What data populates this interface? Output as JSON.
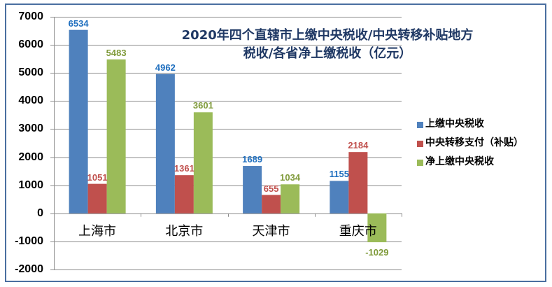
{
  "chart_data": {
    "type": "bar",
    "title": "2020年四个直辖市上缴中央税收/中央转移补贴地方税收/各省净上缴税收（亿元）",
    "title_lines": [
      "2020年四个直辖市上缴中央税收/中央转移补贴地方",
      "税收/各省净上缴税收（亿元）"
    ],
    "categories": [
      "上海市",
      "北京市",
      "天津市",
      "重庆市"
    ],
    "series": [
      {
        "name": "上缴中央税收",
        "color": "#4f81bd",
        "label_color": "#1f6fbf",
        "values": [
          6534,
          4962,
          1689,
          1155
        ]
      },
      {
        "name": "中央转移支付（补贴）",
        "color": "#c0504d",
        "label_color": "#c0504d",
        "values": [
          1051,
          1361,
          655,
          2184
        ]
      },
      {
        "name": "净上缴中央税收",
        "color": "#9bbb59",
        "label_color": "#7f9a3a",
        "values": [
          5483,
          3601,
          1034,
          -1029
        ]
      }
    ],
    "xlabel": "",
    "ylabel": "",
    "ylim": [
      -2000,
      7000
    ],
    "yticks": [
      7000,
      6000,
      5000,
      4000,
      3000,
      2000,
      1000,
      0,
      -1000,
      -2000
    ],
    "grid": true,
    "legend_position": "right",
    "data_labels": true
  }
}
